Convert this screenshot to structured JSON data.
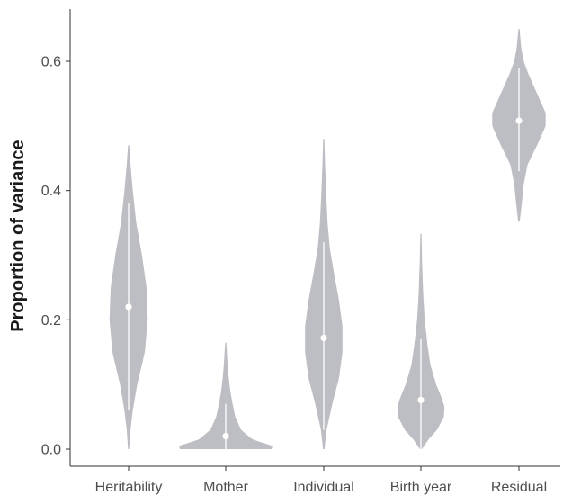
{
  "chart_data": {
    "type": "violin",
    "title": "",
    "xlabel": "",
    "ylabel": "Proportion of variance",
    "ylim": [
      0,
      0.65
    ],
    "yticks": [
      0.0,
      0.2,
      0.4,
      0.6
    ],
    "ytick_labels": [
      "0.0",
      "0.2",
      "0.4",
      "0.6"
    ],
    "grid": false,
    "legend": "none",
    "fill_color": "#bdbec3",
    "marker_color": "#ffffff",
    "categories": [
      "Heritability",
      "Mother",
      "Individual",
      "Birth year",
      "Residual"
    ],
    "series": [
      {
        "category": "Heritability",
        "median": 0.22,
        "ci": [
          0.06,
          0.38
        ],
        "range": [
          0.0,
          0.47
        ],
        "density": [
          [
            0.0,
            0.3
          ],
          [
            0.03,
            1.0
          ],
          [
            0.06,
            2.2
          ],
          [
            0.1,
            4.5
          ],
          [
            0.15,
            8.5
          ],
          [
            0.2,
            10.0
          ],
          [
            0.25,
            9.4
          ],
          [
            0.3,
            7.0
          ],
          [
            0.35,
            4.0
          ],
          [
            0.4,
            2.2
          ],
          [
            0.44,
            1.0
          ],
          [
            0.47,
            0.3
          ]
        ]
      },
      {
        "category": "Mother",
        "median": 0.02,
        "ci": [
          0.0,
          0.07
        ],
        "range": [
          0.0,
          0.165
        ],
        "density": [
          [
            0.0,
            24.0
          ],
          [
            0.005,
            24.5
          ],
          [
            0.015,
            14.0
          ],
          [
            0.03,
            8.0
          ],
          [
            0.05,
            5.0
          ],
          [
            0.07,
            3.6
          ],
          [
            0.09,
            2.4
          ],
          [
            0.11,
            1.6
          ],
          [
            0.13,
            1.0
          ],
          [
            0.15,
            0.6
          ],
          [
            0.165,
            0.3
          ]
        ]
      },
      {
        "category": "Individual",
        "median": 0.172,
        "ci": [
          0.03,
          0.32
        ],
        "range": [
          0.0,
          0.48
        ],
        "density": [
          [
            0.0,
            0.4
          ],
          [
            0.03,
            1.5
          ],
          [
            0.07,
            4.5
          ],
          [
            0.11,
            8.0
          ],
          [
            0.15,
            9.8
          ],
          [
            0.19,
            9.8
          ],
          [
            0.23,
            8.0
          ],
          [
            0.27,
            5.5
          ],
          [
            0.31,
            3.2
          ],
          [
            0.35,
            2.0
          ],
          [
            0.4,
            1.2
          ],
          [
            0.44,
            0.7
          ],
          [
            0.48,
            0.3
          ]
        ]
      },
      {
        "category": "Birth year",
        "median": 0.076,
        "ci": [
          0.0,
          0.17
        ],
        "range": [
          0.0,
          0.333
        ],
        "density": [
          [
            0.0,
            0.5
          ],
          [
            0.015,
            4.0
          ],
          [
            0.03,
            8.5
          ],
          [
            0.05,
            12.0
          ],
          [
            0.065,
            12.4
          ],
          [
            0.08,
            10.8
          ],
          [
            0.1,
            8.0
          ],
          [
            0.13,
            5.0
          ],
          [
            0.16,
            3.5
          ],
          [
            0.2,
            2.0
          ],
          [
            0.24,
            1.2
          ],
          [
            0.29,
            0.6
          ],
          [
            0.333,
            0.3
          ]
        ]
      },
      {
        "category": "Residual",
        "median": 0.508,
        "ci": [
          0.43,
          0.59
        ],
        "range": [
          0.352,
          0.65
        ],
        "density": [
          [
            0.352,
            0.4
          ],
          [
            0.38,
            1.5
          ],
          [
            0.41,
            2.5
          ],
          [
            0.44,
            4.5
          ],
          [
            0.47,
            9.5
          ],
          [
            0.5,
            14.0
          ],
          [
            0.52,
            14.0
          ],
          [
            0.55,
            9.5
          ],
          [
            0.58,
            5.0
          ],
          [
            0.6,
            2.5
          ],
          [
            0.62,
            1.2
          ],
          [
            0.65,
            0.3
          ]
        ]
      }
    ]
  }
}
